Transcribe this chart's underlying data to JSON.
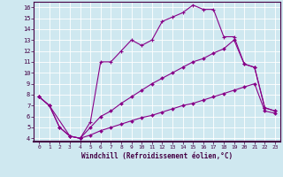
{
  "xlabel": "Windchill (Refroidissement éolien,°C)",
  "bg_color": "#cfe8f0",
  "line_color": "#880088",
  "xlim": [
    -0.5,
    23.5
  ],
  "ylim": [
    3.7,
    16.5
  ],
  "xticks": [
    0,
    1,
    2,
    3,
    4,
    5,
    6,
    7,
    8,
    9,
    10,
    11,
    12,
    13,
    14,
    15,
    16,
    17,
    18,
    19,
    20,
    21,
    22,
    23
  ],
  "yticks": [
    4,
    5,
    6,
    7,
    8,
    9,
    10,
    11,
    12,
    13,
    14,
    15,
    16
  ],
  "line1_x": [
    0,
    1,
    3,
    4,
    5,
    6,
    7,
    8,
    9,
    10,
    11,
    12,
    13,
    14,
    15,
    16,
    17,
    18,
    19,
    20,
    21,
    22,
    23
  ],
  "line1_y": [
    7.8,
    7.0,
    4.2,
    4.0,
    5.5,
    11.0,
    11.0,
    12.0,
    13.0,
    12.5,
    13.0,
    14.7,
    15.1,
    15.5,
    16.2,
    15.8,
    15.8,
    13.3,
    13.3,
    10.8,
    10.5,
    6.8,
    6.5
  ],
  "line2_x": [
    0,
    1,
    2,
    3,
    4,
    5,
    6,
    7,
    8,
    9,
    10,
    11,
    12,
    13,
    14,
    15,
    16,
    17,
    18,
    19,
    20,
    21,
    22,
    23
  ],
  "line2_y": [
    7.8,
    7.0,
    5.0,
    4.2,
    4.0,
    5.0,
    6.0,
    6.5,
    7.2,
    7.8,
    8.4,
    9.0,
    9.5,
    10.0,
    10.5,
    11.0,
    11.3,
    11.8,
    12.2,
    13.0,
    10.8,
    10.5,
    6.8,
    6.5
  ],
  "line3_x": [
    0,
    1,
    2,
    3,
    4,
    5,
    6,
    7,
    8,
    9,
    10,
    11,
    12,
    13,
    14,
    15,
    16,
    17,
    18,
    19,
    20,
    21,
    22,
    23
  ],
  "line3_y": [
    7.8,
    7.0,
    5.0,
    4.2,
    4.0,
    4.3,
    4.7,
    5.0,
    5.3,
    5.6,
    5.9,
    6.1,
    6.4,
    6.7,
    7.0,
    7.2,
    7.5,
    7.8,
    8.1,
    8.4,
    8.7,
    9.0,
    6.5,
    6.3
  ]
}
